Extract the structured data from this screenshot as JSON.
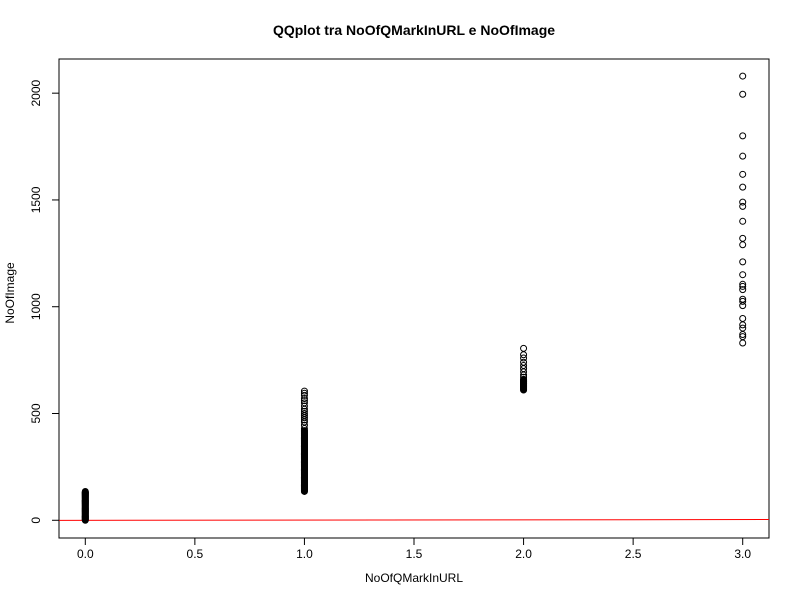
{
  "chart_data": {
    "type": "scatter",
    "title": "QQplot tra NoOfQMarkInURL e NoOfImage",
    "xlabel": "NoOfQMarkInURL",
    "ylabel": "NoOfImage",
    "xlim": [
      -0.12,
      3.12
    ],
    "ylim": [
      -83,
      2160
    ],
    "x_ticks": [
      0.0,
      0.5,
      1.0,
      1.5,
      2.0,
      2.5,
      3.0
    ],
    "x_tick_labels": [
      "0.0",
      "0.5",
      "1.0",
      "1.5",
      "2.0",
      "2.5",
      "3.0"
    ],
    "y_ticks": [
      0,
      500,
      1000,
      1500,
      2000
    ],
    "y_tick_labels": [
      "0",
      "500",
      "1000",
      "1500",
      "2000"
    ],
    "grid": false,
    "marker": "open-circle",
    "marker_color": "#000000",
    "reference_line": {
      "x": [
        -0.12,
        3.12
      ],
      "y": [
        -0.5,
        3.5
      ],
      "color": "#ff0000"
    },
    "groups": [
      {
        "x": 0,
        "y_min": 0,
        "y_max": 135,
        "dense": true
      },
      {
        "x": 1,
        "y_min": 135,
        "y_max": 420,
        "dense": true
      },
      {
        "x": 2,
        "y_min": 610,
        "y_max": 660,
        "dense": true
      }
    ],
    "points": [
      {
        "x": 1,
        "y": 430
      },
      {
        "x": 1,
        "y": 445
      },
      {
        "x": 1,
        "y": 460
      },
      {
        "x": 1,
        "y": 470
      },
      {
        "x": 1,
        "y": 480
      },
      {
        "x": 1,
        "y": 490
      },
      {
        "x": 1,
        "y": 500
      },
      {
        "x": 1,
        "y": 510
      },
      {
        "x": 1,
        "y": 520
      },
      {
        "x": 1,
        "y": 535
      },
      {
        "x": 1,
        "y": 550
      },
      {
        "x": 1,
        "y": 560
      },
      {
        "x": 1,
        "y": 570
      },
      {
        "x": 1,
        "y": 585
      },
      {
        "x": 1,
        "y": 595
      },
      {
        "x": 1,
        "y": 605
      },
      {
        "x": 2,
        "y": 670
      },
      {
        "x": 2,
        "y": 680
      },
      {
        "x": 2,
        "y": 695
      },
      {
        "x": 2,
        "y": 710
      },
      {
        "x": 2,
        "y": 725
      },
      {
        "x": 2,
        "y": 740
      },
      {
        "x": 2,
        "y": 760
      },
      {
        "x": 2,
        "y": 775
      },
      {
        "x": 2,
        "y": 805
      },
      {
        "x": 3,
        "y": 830
      },
      {
        "x": 3,
        "y": 860
      },
      {
        "x": 3,
        "y": 870
      },
      {
        "x": 3,
        "y": 900
      },
      {
        "x": 3,
        "y": 915
      },
      {
        "x": 3,
        "y": 945
      },
      {
        "x": 3,
        "y": 1005
      },
      {
        "x": 3,
        "y": 1025
      },
      {
        "x": 3,
        "y": 1035
      },
      {
        "x": 3,
        "y": 1080
      },
      {
        "x": 3,
        "y": 1095
      },
      {
        "x": 3,
        "y": 1105
      },
      {
        "x": 3,
        "y": 1150
      },
      {
        "x": 3,
        "y": 1210
      },
      {
        "x": 3,
        "y": 1290
      },
      {
        "x": 3,
        "y": 1320
      },
      {
        "x": 3,
        "y": 1400
      },
      {
        "x": 3,
        "y": 1470
      },
      {
        "x": 3,
        "y": 1490
      },
      {
        "x": 3,
        "y": 1560
      },
      {
        "x": 3,
        "y": 1620
      },
      {
        "x": 3,
        "y": 1705
      },
      {
        "x": 3,
        "y": 1800
      },
      {
        "x": 3,
        "y": 1995
      },
      {
        "x": 3,
        "y": 2080
      }
    ]
  }
}
